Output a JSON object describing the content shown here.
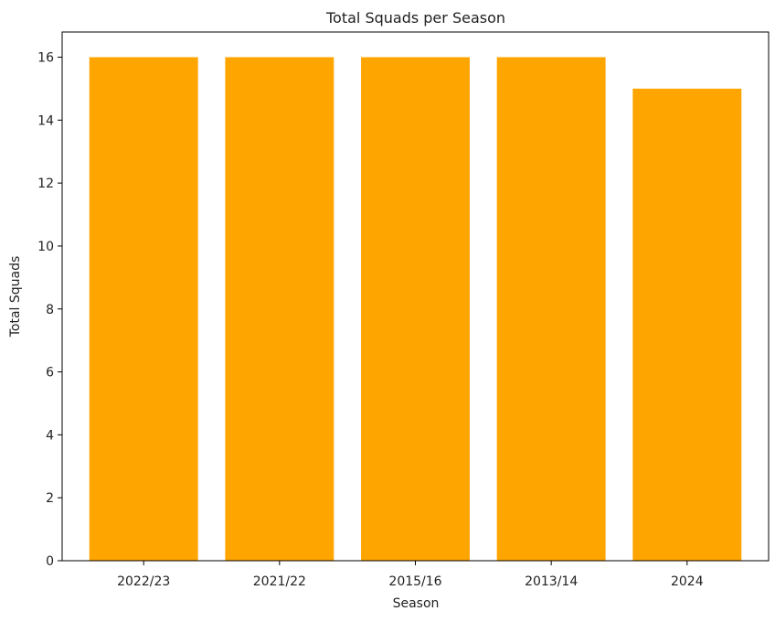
{
  "chart_data": {
    "type": "bar",
    "title": "Total Squads per Season",
    "xlabel": "Season",
    "ylabel": "Total Squads",
    "categories": [
      "2022/23",
      "2021/22",
      "2015/16",
      "2013/14",
      "2024"
    ],
    "values": [
      16,
      16,
      16,
      16,
      15
    ],
    "ylim": [
      0,
      16.8
    ],
    "yticks": [
      0,
      2,
      4,
      6,
      8,
      10,
      12,
      14,
      16
    ],
    "grid": false,
    "bar_color": "#FFA500"
  }
}
